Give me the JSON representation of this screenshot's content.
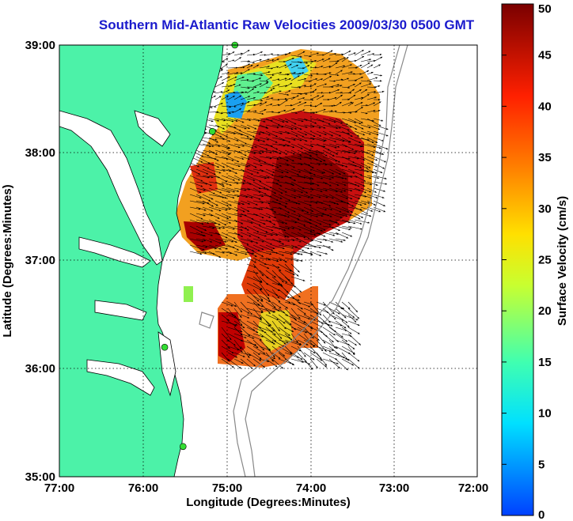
{
  "title": "Southern Mid-Atlantic Raw Velocities 2009/03/30 0500 GMT",
  "xlabel": "Longitude (Degrees:Minutes)",
  "ylabel": "Latitude (Degrees:Minutes)",
  "x_ticks": [
    "77:00",
    "76:00",
    "75:00",
    "74:00",
    "73:00",
    "72:00"
  ],
  "y_ticks": [
    "39:00",
    "38:00",
    "37:00",
    "36:00",
    "35:00"
  ],
  "colorbar": {
    "label": "Surface Velocity (cm/s)",
    "ticks": [
      "0",
      "5",
      "10",
      "15",
      "20",
      "25",
      "30",
      "35",
      "40",
      "45",
      "50"
    ],
    "min": 0,
    "max": 50
  },
  "colors": {
    "land": "#4cf2a8",
    "title": "#1a1acc",
    "station": "#33dd33"
  },
  "stations": [
    {
      "lon": -74.9,
      "lat": 39.0
    },
    {
      "lon": -75.17,
      "lat": 38.2
    },
    {
      "lon": -75.74,
      "lat": 36.2
    },
    {
      "lon": -75.52,
      "lat": 35.28
    }
  ]
}
